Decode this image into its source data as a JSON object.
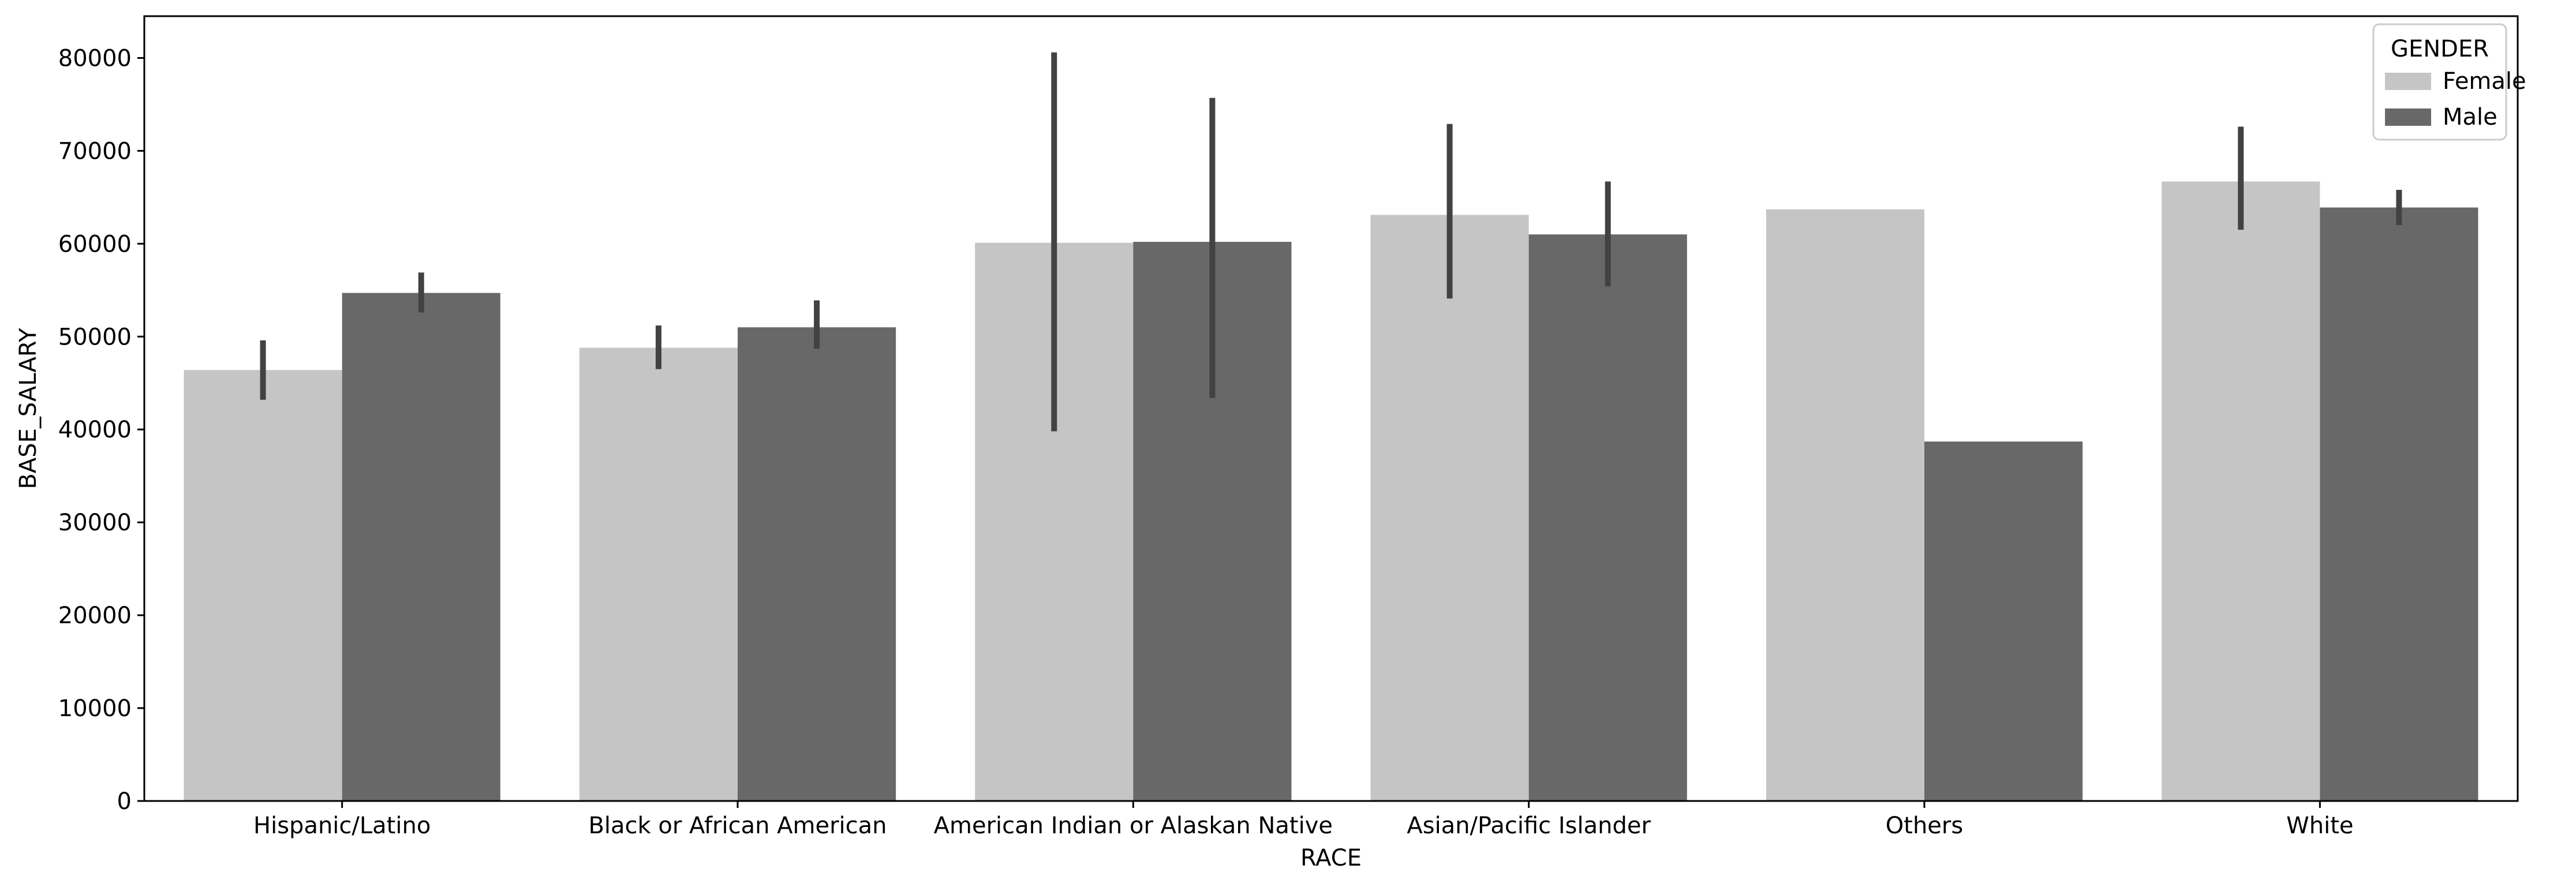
{
  "chart_data": {
    "type": "bar",
    "xlabel": "RACE",
    "ylabel": "BASE_SALARY",
    "ylim": [
      0,
      84500
    ],
    "yticks": [
      0,
      10000,
      20000,
      30000,
      40000,
      50000,
      60000,
      70000,
      80000
    ],
    "ytick_labels": [
      "0",
      "10000",
      "20000",
      "30000",
      "40000",
      "50000",
      "60000",
      "70000",
      "80000"
    ],
    "categories": [
      "Hispanic/Latino",
      "Black or African American",
      "American Indian or Alaskan Native",
      "Asian/Pacific Islander",
      "Others",
      "White"
    ],
    "grid": false,
    "legend": {
      "title": "GENDER",
      "position": "top-right"
    },
    "series": [
      {
        "name": "Female",
        "color": "#c5c5c5",
        "values": [
          46400,
          48800,
          60100,
          63100,
          63700,
          66700
        ],
        "error_low": [
          43200,
          46500,
          39800,
          54100,
          null,
          61500
        ],
        "error_high": [
          49600,
          51200,
          80600,
          72900,
          null,
          72600
        ]
      },
      {
        "name": "Male",
        "color": "#686868",
        "values": [
          54700,
          51000,
          60200,
          61000,
          38700,
          63900
        ],
        "error_low": [
          52600,
          48700,
          43400,
          55400,
          null,
          62000
        ],
        "error_high": [
          56900,
          53900,
          75700,
          66700,
          null,
          65800
        ]
      }
    ],
    "errorbar_color": "#424242"
  }
}
